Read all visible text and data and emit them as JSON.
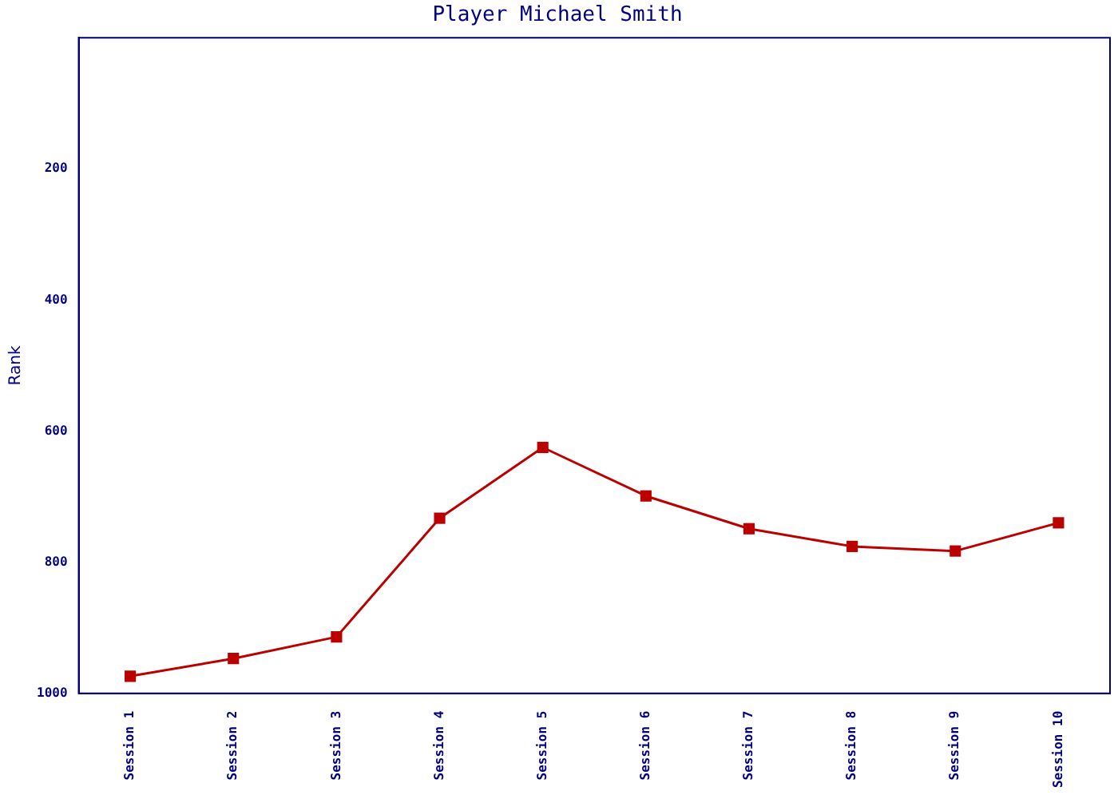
{
  "chart_data": {
    "type": "line",
    "title": "Player Michael Smith",
    "ylabel": "Rank",
    "categories": [
      "Session 1",
      "Session 2",
      "Session 3",
      "Session 4",
      "Session 5",
      "Session 6",
      "Session 7",
      "Session 8",
      "Session 9",
      "Session 10"
    ],
    "series": [
      {
        "color": "#bb0000",
        "values": [
          974,
          947,
          914,
          733,
          625,
          699,
          749,
          776,
          783,
          740
        ]
      }
    ],
    "ylim": [
      1000,
      0
    ],
    "yticks": [
      200,
      400,
      600,
      800,
      1000
    ],
    "grid": false,
    "legend": false,
    "marker": "square",
    "line_style": "solid"
  }
}
